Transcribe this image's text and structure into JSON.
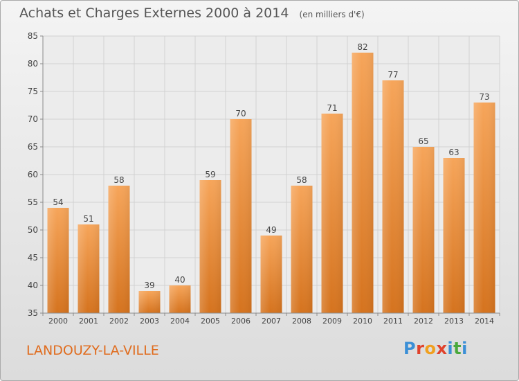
{
  "header": {
    "title": "Achats et Charges Externes 2000 à 2014",
    "unit": "(en milliers d'€)"
  },
  "footer": {
    "place": "LANDOUZY-LA-VILLE",
    "logo_text": "Proxiti",
    "logo_colors": [
      "#3b8fd6",
      "#e0422c",
      "#f0a020",
      "#e0422c",
      "#3b8fd6",
      "#4aa83c",
      "#3b8fd6"
    ]
  },
  "colors": {
    "bar_top": "#f6a55a",
    "bar_bottom": "#d5731e",
    "grid": "#d2d2d2",
    "axis": "#8a8a8a",
    "text": "#444444",
    "place": "#e06c1e"
  },
  "chart_data": {
    "type": "bar",
    "title": "Achats et Charges Externes 2000 à 2014",
    "subtitle": "(en milliers d'€)",
    "xlabel": "",
    "ylabel": "",
    "categories": [
      "2000",
      "2001",
      "2002",
      "2003",
      "2004",
      "2005",
      "2006",
      "2007",
      "2008",
      "2009",
      "2010",
      "2011",
      "2012",
      "2013",
      "2014"
    ],
    "values": [
      54,
      51,
      58,
      39,
      40,
      59,
      70,
      49,
      58,
      71,
      82,
      77,
      65,
      63,
      73
    ],
    "ylim": [
      35,
      85
    ],
    "yticks": [
      35,
      40,
      45,
      50,
      55,
      60,
      65,
      70,
      75,
      80,
      85
    ],
    "grid": true,
    "legend": "none",
    "data_labels": true
  }
}
